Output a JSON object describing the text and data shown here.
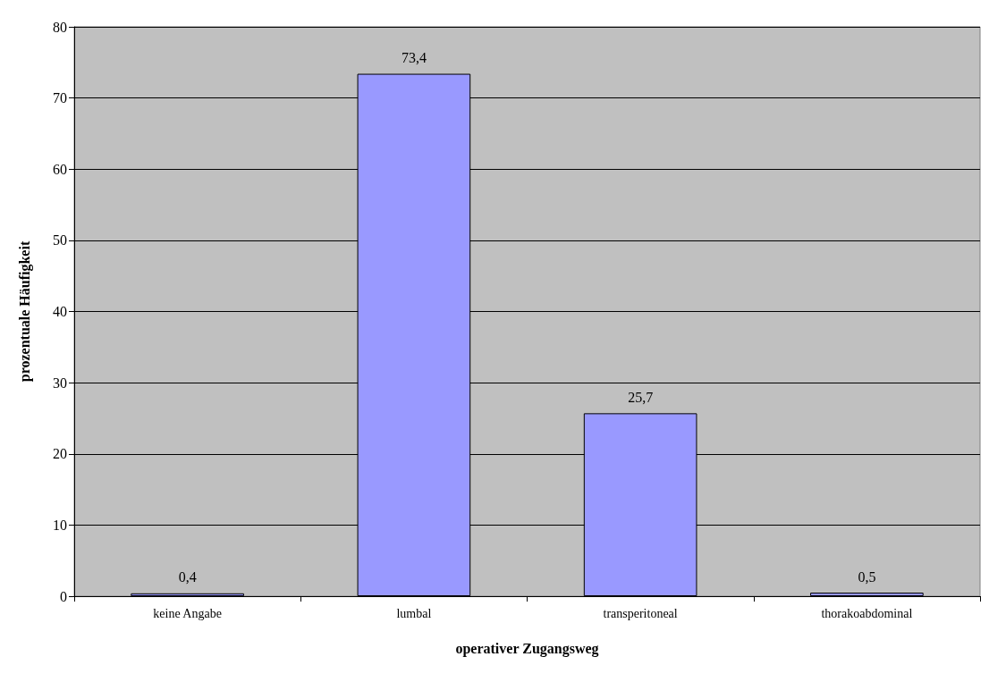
{
  "chart_data": {
    "type": "bar",
    "xlabel": "operativer Zugangsweg",
    "ylabel": "prozentuale Häufigkeit",
    "categories": [
      "keine Angabe",
      "lumbal",
      "transperitoneal",
      "thorakoabdominal"
    ],
    "values": [
      0.4,
      73.4,
      25.7,
      0.5
    ],
    "value_labels": [
      "0,4",
      "73,4",
      "25,7",
      "0,5"
    ],
    "color": "#9999ff",
    "ylim": [
      0,
      80
    ],
    "yticks": [
      0,
      10,
      20,
      30,
      40,
      50,
      60,
      70,
      80
    ],
    "grid": "y"
  }
}
